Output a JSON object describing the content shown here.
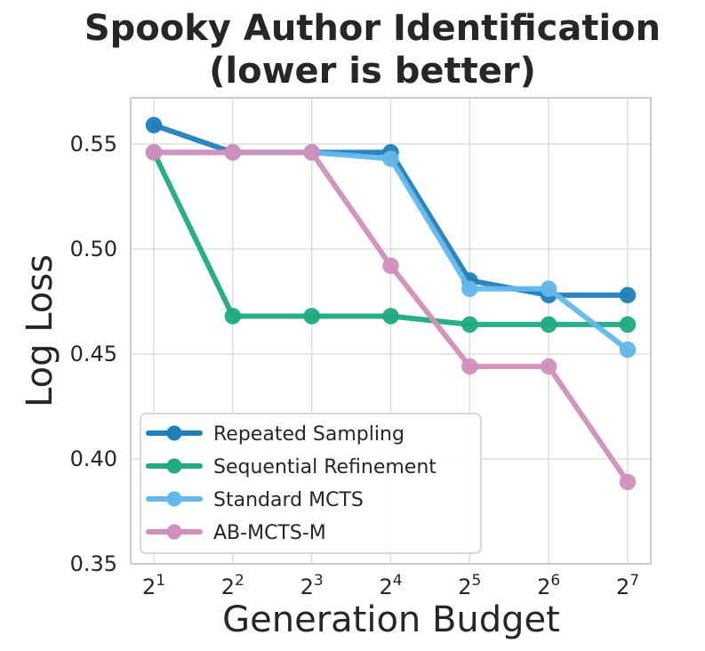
{
  "chart_data": {
    "type": "line",
    "title_line1": "Spooky Author Identification",
    "title_line2": "(lower is better)",
    "xlabel": "Generation Budget",
    "ylabel": "Log Loss",
    "x_base": "2",
    "x_exponents": [
      "1",
      "2",
      "3",
      "4",
      "5",
      "6",
      "7"
    ],
    "ylim": [
      0.35,
      0.572
    ],
    "yticks": [
      "0.35",
      "0.40",
      "0.45",
      "0.50",
      "0.55"
    ],
    "grid": true,
    "legend_position": "lower-left",
    "series": [
      {
        "name": "Repeated Sampling",
        "color": "#1f7fb8",
        "values": [
          0.559,
          0.546,
          0.546,
          0.546,
          0.485,
          0.478,
          0.478
        ]
      },
      {
        "name": "Sequential Refinement",
        "color": "#1faa84",
        "values": [
          0.546,
          0.468,
          0.468,
          0.468,
          0.464,
          0.464,
          0.464
        ]
      },
      {
        "name": "Standard MCTS",
        "color": "#63b7ea",
        "values": [
          0.546,
          0.546,
          0.546,
          0.543,
          0.481,
          0.481,
          0.452
        ]
      },
      {
        "name": "AB-MCTS-M",
        "color": "#d18fbd",
        "values": [
          0.546,
          0.546,
          0.546,
          0.492,
          0.444,
          0.444,
          0.389
        ]
      }
    ]
  }
}
